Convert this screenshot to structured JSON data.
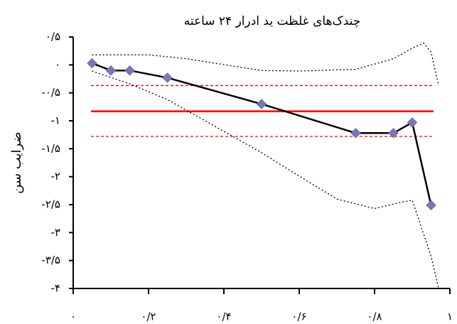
{
  "chart_data": {
    "type": "line",
    "title": "چندک‌های غلظت ید ادرار ۲۴ ساعته",
    "y_label": "ضرایب سن",
    "xlim": [
      0,
      1
    ],
    "ylim": [
      -4,
      0.5
    ],
    "xticks": [
      {
        "value": 0,
        "label": "۰"
      },
      {
        "value": 0.2,
        "label": "۰/۲"
      },
      {
        "value": 0.4,
        "label": "۰/۴"
      },
      {
        "value": 0.6,
        "label": "۰/۶"
      },
      {
        "value": 0.8,
        "label": "۰/۸"
      },
      {
        "value": 1,
        "label": "۱"
      }
    ],
    "yticks": [
      {
        "value": 0.5,
        "label": "۰/۵"
      },
      {
        "value": 0,
        "label": "۰"
      },
      {
        "value": -0.5,
        "label": "-۰/۵"
      },
      {
        "value": -1,
        "label": "-۱"
      },
      {
        "value": -1.5,
        "label": "-۱/۵"
      },
      {
        "value": -2,
        "label": "-۲"
      },
      {
        "value": -2.5,
        "label": "-۲/۵"
      },
      {
        "value": -3,
        "label": "-۳"
      },
      {
        "value": -3.5,
        "label": "-۳/۵"
      },
      {
        "value": -4,
        "label": "-۴"
      }
    ],
    "series": [
      {
        "color": "#000000",
        "style": "solid",
        "marker_color": "#7777bb",
        "x": [
          0.05,
          0.1,
          0.15,
          0.25,
          0.5,
          0.75,
          0.85,
          0.9,
          0.95
        ],
        "values": [
          0.03,
          -0.1,
          -0.1,
          -0.23,
          -0.7,
          -1.22,
          -1.22,
          -1.03,
          -2.51
        ]
      },
      {
        "color": "#000000",
        "style": "dotted",
        "x": [
          0.05,
          0.2,
          0.3,
          0.5,
          0.6,
          0.75,
          0.85,
          0.9,
          0.93,
          0.95,
          0.97
        ],
        "values": [
          0.18,
          0.18,
          0.11,
          -0.1,
          -0.11,
          -0.08,
          0.11,
          0.3,
          0.39,
          0.23,
          -0.37
        ]
      },
      {
        "color": "#000000",
        "style": "dotted",
        "x": [
          0.05,
          0.15,
          0.25,
          0.4,
          0.5,
          0.6,
          0.7,
          0.8,
          0.87,
          0.9,
          0.95,
          0.97
        ],
        "values": [
          -0.11,
          -0.34,
          -0.62,
          -1.19,
          -1.57,
          -1.99,
          -2.4,
          -2.57,
          -2.46,
          -2.42,
          -3.42,
          -4
        ]
      }
    ],
    "hlines": [
      {
        "value": -0.83,
        "color": "#ff0000",
        "style": "solid"
      },
      {
        "value": -0.37,
        "color": "#ff0000",
        "style": "dashed"
      },
      {
        "value": -1.28,
        "color": "#ff0000",
        "style": "dashed"
      }
    ]
  }
}
